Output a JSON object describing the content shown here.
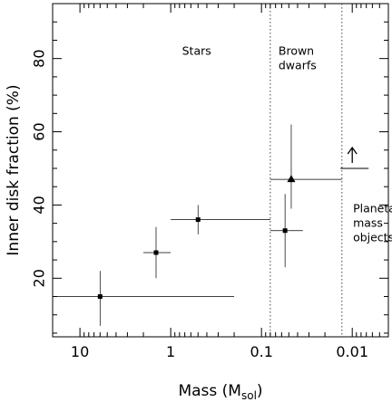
{
  "chart_data": {
    "type": "scatter",
    "title": "",
    "xlabel_main": "Mass (M",
    "xlabel_sub": "sol",
    "xlabel_close": ")",
    "ylabel": "Inner disk fraction (%)",
    "x_scale": "log",
    "x_reversed": true,
    "xlim": [
      20,
      0.004
    ],
    "ylim": [
      4,
      95
    ],
    "x_ticks": [
      {
        "value": 10,
        "label": "10"
      },
      {
        "value": 1,
        "label": "1"
      },
      {
        "value": 0.1,
        "label": "0.1"
      },
      {
        "value": 0.01,
        "label": "0.01"
      }
    ],
    "y_ticks": [
      {
        "value": 20,
        "label": "20"
      },
      {
        "value": 40,
        "label": "40"
      },
      {
        "value": 60,
        "label": "60"
      },
      {
        "value": 80,
        "label": "80"
      }
    ],
    "boundaries": [
      0.08,
      0.013
    ],
    "annotations": [
      {
        "lines": [
          "Stars"
        ],
        "x_value": 0.75,
        "y_value": 81
      },
      {
        "lines": [
          "Brown",
          "dwarfs"
        ],
        "x_value": 0.065,
        "y_value": 81
      },
      {
        "lines": [
          "Planetary",
          "mass",
          "objects"
        ],
        "x_value": 0.0098,
        "y_value": 38
      }
    ],
    "points": [
      {
        "x": 6.0,
        "x_low": 0.2,
        "x_high": 20.0,
        "y": 15,
        "y_low": 7,
        "y_high": 22,
        "marker": "square"
      },
      {
        "x": 1.45,
        "x_low": 1.0,
        "x_high": 2.0,
        "y": 27,
        "y_low": 20,
        "y_high": 34,
        "marker": "square"
      },
      {
        "x": 0.5,
        "x_low": 0.08,
        "x_high": 1.0,
        "y": 36,
        "y_low": 32,
        "y_high": 40,
        "marker": "square"
      },
      {
        "x": 0.055,
        "x_low": 0.035,
        "x_high": 0.08,
        "y": 33,
        "y_low": 23,
        "y_high": 43,
        "marker": "square"
      },
      {
        "x": 0.047,
        "x_low": 0.013,
        "x_high": 0.08,
        "y": 47,
        "y_low": 39,
        "y_high": 62,
        "marker": "triangle"
      }
    ],
    "lower_limits": [
      {
        "x": 0.01,
        "x_low": 0.0066,
        "x_high": 0.0135,
        "y": 50,
        "marker": "arrow-up"
      }
    ],
    "grid": false,
    "legend": "none"
  }
}
